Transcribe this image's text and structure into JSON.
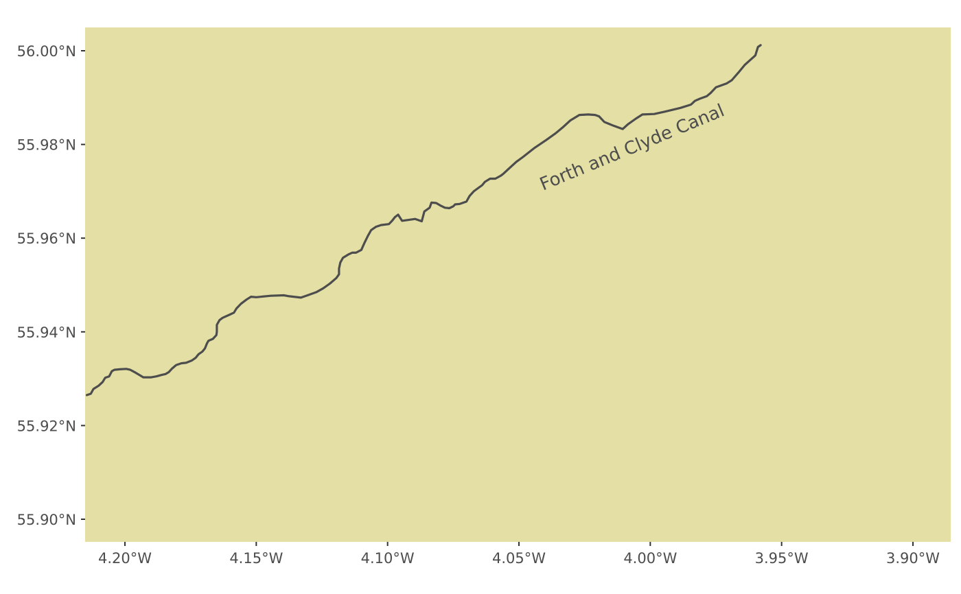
{
  "map": {
    "background_color": "#ffffff",
    "panel_color": "#e3dfa5",
    "line_color": "#4d4d4d",
    "tick_color": "#333333",
    "feature_label": "Forth and Clyde Canal",
    "x_ticks": [
      {
        "value": -4.2,
        "label": "4.20°W"
      },
      {
        "value": -4.15,
        "label": "4.15°W"
      },
      {
        "value": -4.1,
        "label": "4.10°W"
      },
      {
        "value": -4.05,
        "label": "4.05°W"
      },
      {
        "value": -4.0,
        "label": "4.00°W"
      },
      {
        "value": -3.95,
        "label": "3.95°W"
      },
      {
        "value": -3.9,
        "label": "3.90°W"
      }
    ],
    "y_ticks": [
      {
        "value": 56.0,
        "label": "56.00°N"
      },
      {
        "value": 55.98,
        "label": "55.98°N"
      },
      {
        "value": 55.96,
        "label": "55.96°N"
      },
      {
        "value": 55.94,
        "label": "55.94°N"
      },
      {
        "value": 55.92,
        "label": "55.92°N"
      },
      {
        "value": 55.9,
        "label": "55.90°N"
      }
    ],
    "canal_path": [
      [
        -4.2145,
        55.9265
      ],
      [
        -4.213,
        55.9268
      ],
      [
        -4.212,
        55.9278
      ],
      [
        -4.21,
        55.9285
      ],
      [
        -4.2085,
        55.9293
      ],
      [
        -4.2075,
        55.9302
      ],
      [
        -4.206,
        55.9305
      ],
      [
        -4.205,
        55.9316
      ],
      [
        -4.204,
        55.9319
      ],
      [
        -4.202,
        55.932
      ],
      [
        -4.1995,
        55.9321
      ],
      [
        -4.198,
        55.9319
      ],
      [
        -4.196,
        55.9313
      ],
      [
        -4.1945,
        55.9308
      ],
      [
        -4.193,
        55.9303
      ],
      [
        -4.19,
        55.9303
      ],
      [
        -4.188,
        55.9305
      ],
      [
        -4.186,
        55.9308
      ],
      [
        -4.1845,
        55.931
      ],
      [
        -4.1833,
        55.9314
      ],
      [
        -4.182,
        55.9322
      ],
      [
        -4.1805,
        55.9329
      ],
      [
        -4.1785,
        55.9333
      ],
      [
        -4.1767,
        55.9334
      ],
      [
        -4.1745,
        55.9339
      ],
      [
        -4.173,
        55.9345
      ],
      [
        -4.172,
        55.9352
      ],
      [
        -4.1705,
        55.9358
      ],
      [
        -4.1695,
        55.9365
      ],
      [
        -4.1688,
        55.9375
      ],
      [
        -4.1682,
        55.9381
      ],
      [
        -4.1665,
        55.9385
      ],
      [
        -4.1652,
        55.9393
      ],
      [
        -4.165,
        55.94
      ],
      [
        -4.165,
        55.9415
      ],
      [
        -4.164,
        55.9425
      ],
      [
        -4.1628,
        55.943
      ],
      [
        -4.16,
        55.9437
      ],
      [
        -4.1585,
        55.9441
      ],
      [
        -4.1575,
        55.945
      ],
      [
        -4.1558,
        55.946
      ],
      [
        -4.1537,
        55.9469
      ],
      [
        -4.152,
        55.9475
      ],
      [
        -4.15,
        55.9474
      ],
      [
        -4.1445,
        55.9477
      ],
      [
        -4.1395,
        55.9478
      ],
      [
        -4.1375,
        55.9476
      ],
      [
        -4.133,
        55.9473
      ],
      [
        -4.131,
        55.9477
      ],
      [
        -4.127,
        55.9485
      ],
      [
        -4.1245,
        55.9493
      ],
      [
        -4.122,
        55.9503
      ],
      [
        -4.1195,
        55.9515
      ],
      [
        -4.1185,
        55.9523
      ],
      [
        -4.1185,
        55.9535
      ],
      [
        -4.118,
        55.9548
      ],
      [
        -4.117,
        55.9558
      ],
      [
        -4.115,
        55.9565
      ],
      [
        -4.1135,
        55.9569
      ],
      [
        -4.112,
        55.9569
      ],
      [
        -4.11,
        55.9575
      ],
      [
        -4.1088,
        55.959
      ],
      [
        -4.1075,
        55.9605
      ],
      [
        -4.1063,
        55.9617
      ],
      [
        -4.1045,
        55.9624
      ],
      [
        -4.1025,
        55.9628
      ],
      [
        -4.0995,
        55.963
      ],
      [
        -4.0983,
        55.9637
      ],
      [
        -4.0972,
        55.9645
      ],
      [
        -4.096,
        55.965
      ],
      [
        -4.0945,
        55.9637
      ],
      [
        -4.092,
        55.9639
      ],
      [
        -4.0895,
        55.9641
      ],
      [
        -4.087,
        55.9636
      ],
      [
        -4.086,
        55.9657
      ],
      [
        -4.084,
        55.9665
      ],
      [
        -4.0833,
        55.9676
      ],
      [
        -4.0815,
        55.9675
      ],
      [
        -4.08,
        55.967
      ],
      [
        -4.0782,
        55.9665
      ],
      [
        -4.0765,
        55.9664
      ],
      [
        -4.075,
        55.9668
      ],
      [
        -4.0743,
        55.9672
      ],
      [
        -4.0725,
        55.9673
      ],
      [
        -4.07,
        55.9678
      ],
      [
        -4.0688,
        55.969
      ],
      [
        -4.0672,
        55.97
      ],
      [
        -4.0655,
        55.9707
      ],
      [
        -4.064,
        55.9713
      ],
      [
        -4.063,
        55.972
      ],
      [
        -4.061,
        55.9727
      ],
      [
        -4.059,
        55.9727
      ],
      [
        -4.057,
        55.9733
      ],
      [
        -4.056,
        55.9737
      ],
      [
        -4.0535,
        55.975
      ],
      [
        -4.051,
        55.9763
      ],
      [
        -4.0485,
        55.9773
      ],
      [
        -4.044,
        55.9793
      ],
      [
        -4.0395,
        55.981
      ],
      [
        -4.036,
        55.9824
      ],
      [
        -4.033,
        55.9838
      ],
      [
        -4.0305,
        55.9851
      ],
      [
        -4.027,
        55.9863
      ],
      [
        -4.0236,
        55.9864
      ],
      [
        -4.021,
        55.9863
      ],
      [
        -4.0195,
        55.986
      ],
      [
        -4.0175,
        55.9848
      ],
      [
        -4.014,
        55.984
      ],
      [
        -4.0105,
        55.9833
      ],
      [
        -4.0085,
        55.9843
      ],
      [
        -4.0055,
        55.9855
      ],
      [
        -4.003,
        55.9864
      ],
      [
        -3.9985,
        55.9865
      ],
      [
        -3.9945,
        55.987
      ],
      [
        -3.9885,
        55.9878
      ],
      [
        -3.9845,
        55.9885
      ],
      [
        -3.983,
        55.9893
      ],
      [
        -3.981,
        55.9898
      ],
      [
        -3.9785,
        55.9903
      ],
      [
        -3.977,
        55.991
      ],
      [
        -3.975,
        55.9922
      ],
      [
        -3.973,
        55.9926
      ],
      [
        -3.971,
        55.993
      ],
      [
        -3.969,
        55.9937
      ],
      [
        -3.9665,
        55.9953
      ],
      [
        -3.964,
        55.997
      ],
      [
        -3.962,
        55.998
      ],
      [
        -3.96,
        55.999
      ],
      [
        -3.959,
        56.0008
      ],
      [
        -3.958,
        56.0012
      ]
    ]
  }
}
